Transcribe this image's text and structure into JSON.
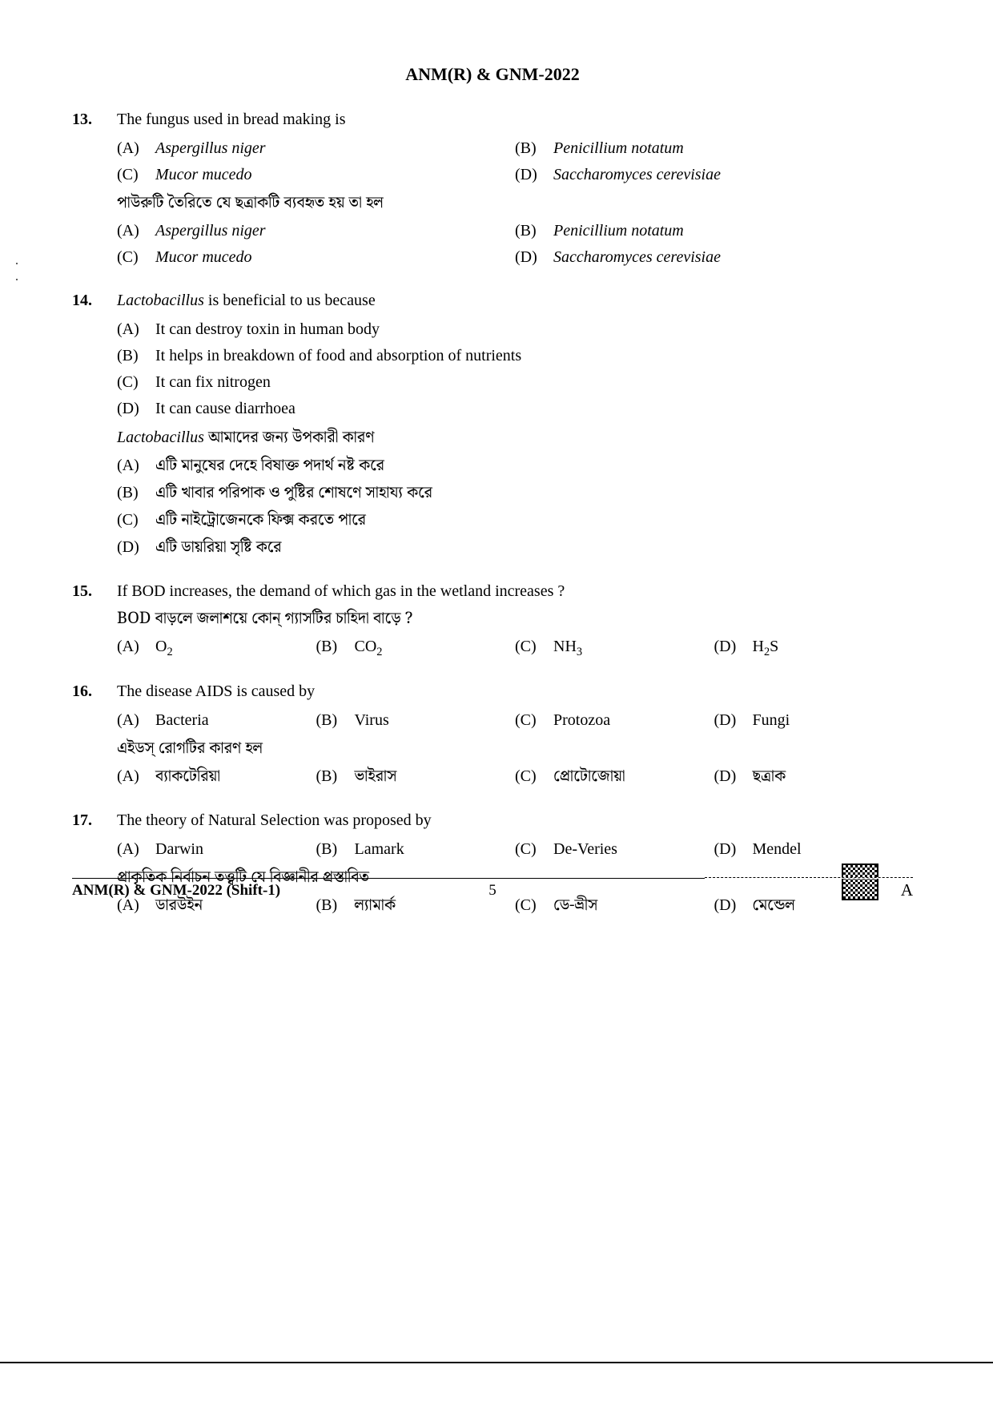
{
  "exam_header": "ANM(R) & GNM-2022",
  "questions": [
    {
      "num": "13.",
      "stem_en": "The fungus used in bread making is",
      "options_en": [
        {
          "label": "(A)",
          "text": "Aspergillus niger",
          "italic": true
        },
        {
          "label": "(B)",
          "text": "Penicillium notatum",
          "italic": true
        },
        {
          "label": "(C)",
          "text": "Mucor mucedo",
          "italic": true
        },
        {
          "label": "(D)",
          "text": "Saccharomyces cerevisiae",
          "italic": true
        }
      ],
      "stem_bn": "পাউরুটি তৈরিতে যে ছত্রাকটি ব্যবহৃত হয় তা হল",
      "options_bn": [
        {
          "label": "(A)",
          "text": "Aspergillus niger",
          "italic": true
        },
        {
          "label": "(B)",
          "text": "Penicillium notatum",
          "italic": true
        },
        {
          "label": "(C)",
          "text": "Mucor mucedo",
          "italic": true
        },
        {
          "label": "(D)",
          "text": "Saccharomyces cerevisiae",
          "italic": true
        }
      ],
      "layout": "2col"
    },
    {
      "num": "14.",
      "stem_en_pre": "Lactobacillus",
      "stem_en_post": " is beneficial to us because",
      "options_en": [
        {
          "label": "(A)",
          "text": "It can destroy toxin in human body"
        },
        {
          "label": "(B)",
          "text": "It helps in breakdown of food and absorption of nutrients"
        },
        {
          "label": "(C)",
          "text": "It can fix nitrogen"
        },
        {
          "label": "(D)",
          "text": "It can cause diarrhoea"
        }
      ],
      "stem_bn_pre": "Lactobacillus",
      "stem_bn_post": " আমাদের জন্য উপকারী কারণ",
      "options_bn": [
        {
          "label": "(A)",
          "text": "এটি মানুষের দেহে বিষাক্ত পদার্থ নষ্ট করে"
        },
        {
          "label": "(B)",
          "text": "এটি খাবার পরিপাক ও পুষ্টির শোষণে সাহায্য করে"
        },
        {
          "label": "(C)",
          "text": "এটি নাইট্রোজেনকে ফিক্স করতে পারে"
        },
        {
          "label": "(D)",
          "text": "এটি ডায়রিয়া সৃষ্টি করে"
        }
      ],
      "layout": "1col"
    },
    {
      "num": "15.",
      "stem_en": "If BOD increases, the demand of which gas in the wetland increases ?",
      "stem_bn": "BOD বাড়লে জলাশয়ে কোন্ গ্যাসটির চাহিদা বাড়ে ?",
      "options": [
        {
          "label": "(A)",
          "text": "O",
          "sub": "2"
        },
        {
          "label": "(B)",
          "text": "CO",
          "sub": "2"
        },
        {
          "label": "(C)",
          "text": "NH",
          "sub": "3"
        },
        {
          "label": "(D)",
          "text": "H",
          "sub": "2",
          "post": "S"
        }
      ],
      "layout": "4col"
    },
    {
      "num": "16.",
      "stem_en": "The disease AIDS is caused by",
      "options_en": [
        {
          "label": "(A)",
          "text": "Bacteria"
        },
        {
          "label": "(B)",
          "text": "Virus"
        },
        {
          "label": "(C)",
          "text": "Protozoa"
        },
        {
          "label": "(D)",
          "text": "Fungi"
        }
      ],
      "stem_bn": "এইডস্ রোগটির কারণ হল",
      "options_bn": [
        {
          "label": "(A)",
          "text": "ব্যাকটেরিয়া"
        },
        {
          "label": "(B)",
          "text": "ভাইরাস"
        },
        {
          "label": "(C)",
          "text": "প্রোটোজোয়া"
        },
        {
          "label": "(D)",
          "text": "ছত্রাক"
        }
      ],
      "layout": "4col-dual"
    },
    {
      "num": "17.",
      "stem_en": "The theory of Natural Selection was proposed by",
      "options_en": [
        {
          "label": "(A)",
          "text": "Darwin"
        },
        {
          "label": "(B)",
          "text": "Lamark"
        },
        {
          "label": "(C)",
          "text": "De-Veries"
        },
        {
          "label": "(D)",
          "text": "Mendel"
        }
      ],
      "stem_bn": "প্রাকৃতিক নির্বাচন তত্ত্বটি যে বিজ্ঞানীর প্রস্তাবিত",
      "options_bn": [
        {
          "label": "(A)",
          "text": "ডারউইন"
        },
        {
          "label": "(B)",
          "text": "ল্যামার্ক"
        },
        {
          "label": "(C)",
          "text": "ডে-ভ্রীস"
        },
        {
          "label": "(D)",
          "text": "মেন্ডেল"
        }
      ],
      "layout": "4col-dual"
    }
  ],
  "footer_left": "ANM(R) & GNM-2022 (Shift-1)",
  "footer_page": "5",
  "footer_booklet": "A"
}
